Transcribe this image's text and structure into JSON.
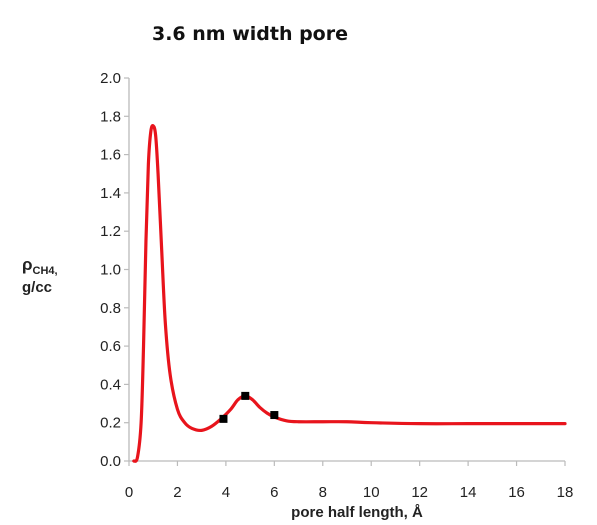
{
  "chart_data": {
    "type": "line",
    "title": "3.6 nm width pore",
    "xlabel": "pore half length, Å",
    "ylabel": {
      "symbol": "ρ",
      "subscript": "CH4,",
      "unit": "g/cc"
    },
    "xlim": [
      0,
      18
    ],
    "ylim": [
      0,
      2.0
    ],
    "x_ticks": [
      0,
      2,
      4,
      6,
      8,
      10,
      12,
      14,
      16,
      18
    ],
    "y_ticks": [
      "0.0",
      "0.2",
      "0.4",
      "0.6",
      "0.8",
      "1.0",
      "1.2",
      "1.4",
      "1.6",
      "1.8",
      "2.0"
    ],
    "grid": false,
    "series": [
      {
        "color": "#e8141c",
        "x": [
          0.2,
          0.35,
          0.5,
          0.6,
          0.7,
          0.8,
          0.9,
          1.0,
          1.1,
          1.2,
          1.35,
          1.5,
          1.7,
          2.0,
          2.3,
          2.6,
          3.0,
          3.4,
          3.8,
          4.2,
          4.5,
          4.8,
          5.1,
          5.4,
          5.7,
          6.0,
          6.5,
          7.0,
          8.0,
          9.0,
          10.0,
          12.0,
          14.0,
          16.0,
          18.0
        ],
        "y": [
          0.0,
          0.02,
          0.2,
          0.6,
          1.15,
          1.55,
          1.72,
          1.75,
          1.7,
          1.5,
          1.1,
          0.72,
          0.45,
          0.27,
          0.2,
          0.17,
          0.16,
          0.18,
          0.22,
          0.27,
          0.32,
          0.34,
          0.32,
          0.28,
          0.25,
          0.23,
          0.21,
          0.205,
          0.205,
          0.205,
          0.2,
          0.195,
          0.195,
          0.195,
          0.195
        ]
      }
    ],
    "markers": [
      {
        "x": 3.9,
        "y": 0.22
      },
      {
        "x": 4.8,
        "y": 0.34
      },
      {
        "x": 6.0,
        "y": 0.24
      }
    ]
  }
}
